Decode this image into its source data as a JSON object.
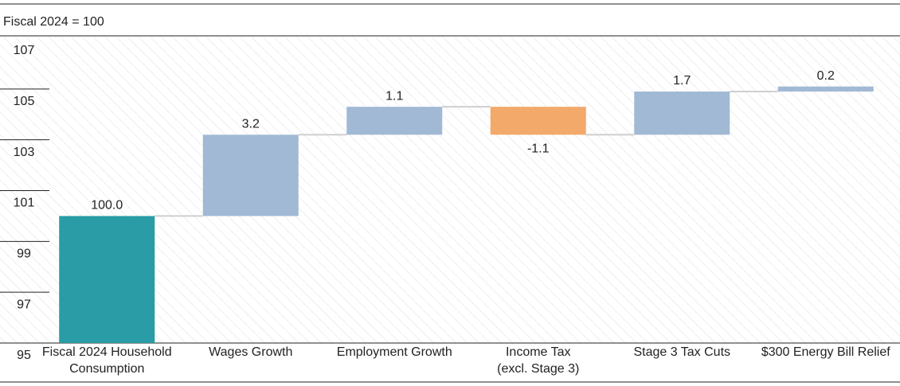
{
  "chart_data": {
    "type": "waterfall",
    "subtitle": "Fiscal 2024 = 100",
    "categories": [
      "Fiscal 2024 Household\nConsumption",
      "Wages Growth",
      "Employment Growth",
      "Income Tax\n(excl. Stage 3)",
      "Stage 3 Tax Cuts",
      "$300 Energy Bill Relief"
    ],
    "values": [
      100.0,
      3.2,
      1.1,
      -1.1,
      1.7,
      0.2
    ],
    "value_labels": [
      "100.0",
      "3.2",
      "1.1",
      "-1.1",
      "1.7",
      "0.2"
    ],
    "colors": [
      "#2a9ca5",
      "#a1b9d4",
      "#a1b9d4",
      "#f2a96a",
      "#a1b9d4",
      "#a1b9d4"
    ],
    "ylim": [
      95,
      107
    ],
    "yticks": [
      95,
      97,
      99,
      101,
      103,
      105,
      107
    ]
  }
}
